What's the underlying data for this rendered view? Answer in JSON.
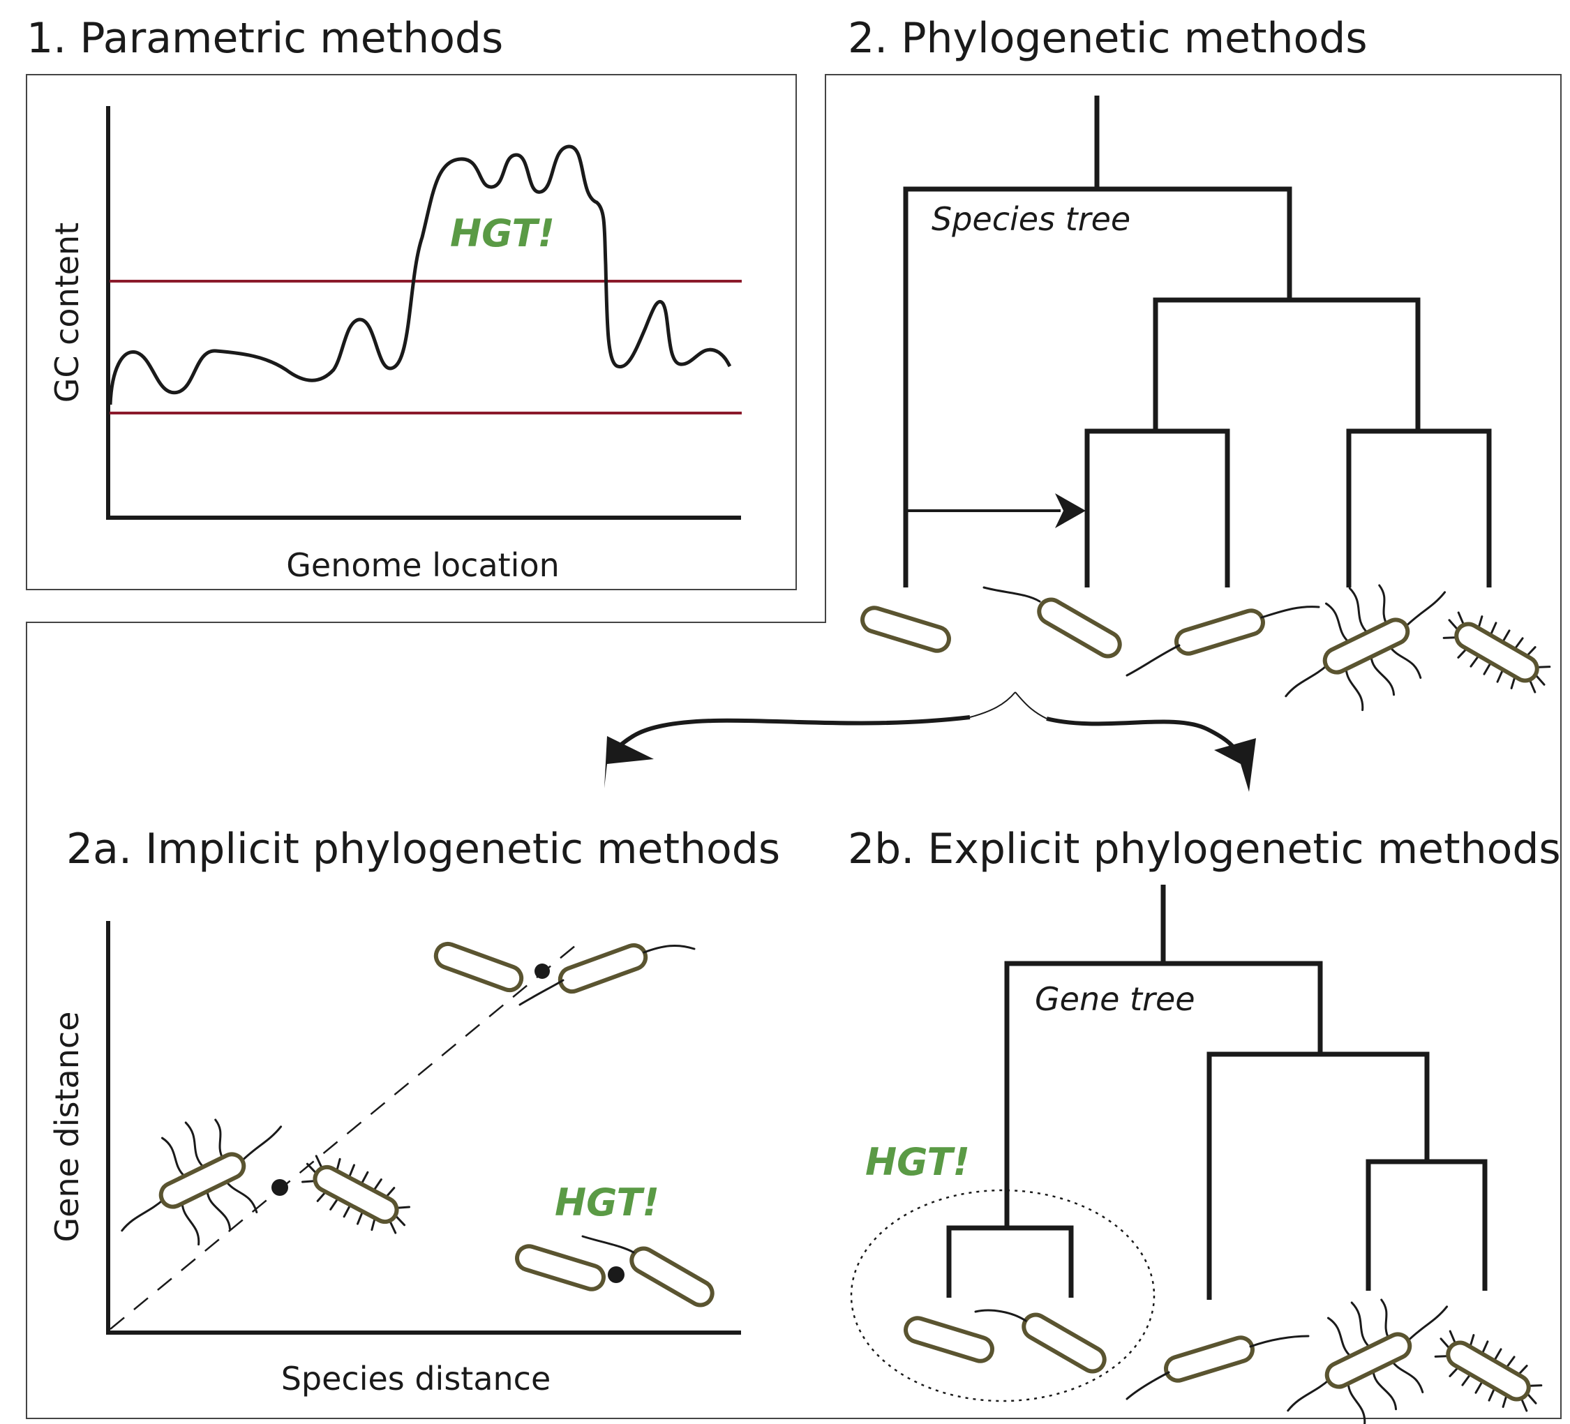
{
  "headings": {
    "parametric": "1. Parametric methods",
    "phylogenetic": "2. Phylogenetic methods",
    "implicit": "2a. Implicit phylogenetic methods",
    "explicit": "2b. Explicit phylogenetic methods"
  },
  "panel1": {
    "ylabel": "GC content",
    "xlabel": "Genome location",
    "annotation": "HGT!"
  },
  "panel2": {
    "tree_label": "Species tree"
  },
  "panel2a": {
    "ylabel": "Gene distance",
    "xlabel": "Species distance",
    "annotation": "HGT!"
  },
  "panel2b": {
    "tree_label": "Gene tree",
    "annotation": "HGT!"
  },
  "colors": {
    "hgt_green": "#5a9a45",
    "threshold_red": "#8b1a2b",
    "bacterium_outline": "#5a5430",
    "line": "#1a1a1a"
  }
}
